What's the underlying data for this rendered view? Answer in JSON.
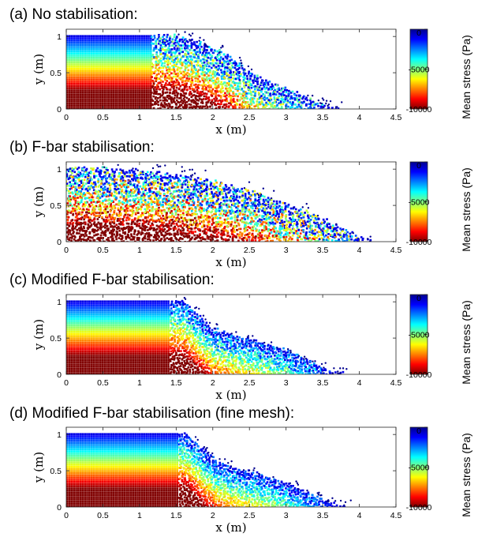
{
  "chart_data": [
    {
      "type": "scatter",
      "panel_title": "(a) No stabilisation:",
      "xlabel": "x (m)",
      "ylabel": "y (m)",
      "xlim": [
        0,
        4.5
      ],
      "ylim": [
        0,
        1.1
      ],
      "xticks": [
        "0",
        "0.5",
        "1",
        "1.5",
        "2",
        "2.5",
        "3",
        "3.5",
        "4",
        "4.5"
      ],
      "yticks": [
        "0",
        "0.5",
        "1"
      ],
      "colorbar": {
        "label": "Mean stress (Pa)",
        "ticks": [
          "0",
          "-5000",
          "-10000"
        ],
        "range": [
          -10000,
          0
        ],
        "colormap": "jet"
      },
      "profile": [
        [
          0,
          1.0
        ],
        [
          1.5,
          1.0
        ],
        [
          1.65,
          0.95
        ],
        [
          1.9,
          0.87
        ],
        [
          2.2,
          0.72
        ],
        [
          2.5,
          0.5
        ],
        [
          2.85,
          0.32
        ],
        [
          3.2,
          0.18
        ],
        [
          3.45,
          0.06
        ],
        [
          3.6,
          0
        ]
      ],
      "noise": 0.55
    },
    {
      "type": "scatter",
      "panel_title": "(b) F-bar stabilisation:",
      "xlabel": "x (m)",
      "ylabel": "y (m)",
      "xlim": [
        0,
        4.5
      ],
      "ylim": [
        0,
        1.1
      ],
      "xticks": [
        "0",
        "0.5",
        "1",
        "1.5",
        "2",
        "2.5",
        "3",
        "3.5",
        "4",
        "4.5"
      ],
      "yticks": [
        "0",
        "0.5",
        "1"
      ],
      "colorbar": {
        "label": "Mean stress (Pa)",
        "ticks": [
          "0",
          "-5000",
          "-10000"
        ],
        "range": [
          -10000,
          0
        ],
        "colormap": "jet"
      },
      "profile": [
        [
          0,
          1.0
        ],
        [
          0.5,
          0.99
        ],
        [
          1.0,
          0.96
        ],
        [
          1.5,
          0.9
        ],
        [
          2.0,
          0.82
        ],
        [
          2.5,
          0.68
        ],
        [
          3.0,
          0.5
        ],
        [
          3.5,
          0.3
        ],
        [
          3.9,
          0.1
        ],
        [
          4.05,
          0
        ]
      ],
      "noise": 0.85
    },
    {
      "type": "scatter",
      "panel_title": "(c) Modified F-bar stabilisation:",
      "xlabel": "x (m)",
      "ylabel": "y (m)",
      "xlim": [
        0,
        4.5
      ],
      "ylim": [
        0,
        1.1
      ],
      "xticks": [
        "0",
        "0.5",
        "1",
        "1.5",
        "2",
        "2.5",
        "3",
        "3.5",
        "4",
        "4.5"
      ],
      "yticks": [
        "0",
        "0.5",
        "1"
      ],
      "colorbar": {
        "label": "Mean stress (Pa)",
        "ticks": [
          "0",
          "-5000",
          "-10000"
        ],
        "range": [
          -10000,
          0
        ],
        "colormap": "jet"
      },
      "profile": [
        [
          0,
          1.0
        ],
        [
          1.6,
          1.0
        ],
        [
          1.8,
          0.82
        ],
        [
          2.0,
          0.62
        ],
        [
          2.3,
          0.52
        ],
        [
          2.6,
          0.45
        ],
        [
          3.0,
          0.32
        ],
        [
          3.35,
          0.16
        ],
        [
          3.55,
          0.05
        ],
        [
          3.65,
          0
        ]
      ],
      "noise": 0.3
    },
    {
      "type": "scatter",
      "panel_title": "(d) Modified F-bar stabilisation (fine mesh):",
      "xlabel": "x (m)",
      "ylabel": "y (m)",
      "xlim": [
        0,
        4.5
      ],
      "ylim": [
        0,
        1.1
      ],
      "xticks": [
        "0",
        "0.5",
        "1",
        "1.5",
        "2",
        "2.5",
        "3",
        "3.5",
        "4",
        "4.5"
      ],
      "yticks": [
        "0",
        "0.5",
        "1"
      ],
      "colorbar": {
        "label": "Mean stress (Pa)",
        "ticks": [
          "0",
          "-5000",
          "-10000"
        ],
        "range": [
          -10000,
          0
        ],
        "colormap": "jet"
      },
      "profile": [
        [
          0,
          1.0
        ],
        [
          1.65,
          1.0
        ],
        [
          1.85,
          0.8
        ],
        [
          2.05,
          0.62
        ],
        [
          2.3,
          0.52
        ],
        [
          2.6,
          0.45
        ],
        [
          3.0,
          0.32
        ],
        [
          3.35,
          0.16
        ],
        [
          3.6,
          0.05
        ],
        [
          3.7,
          0
        ]
      ],
      "noise": 0.22
    }
  ]
}
